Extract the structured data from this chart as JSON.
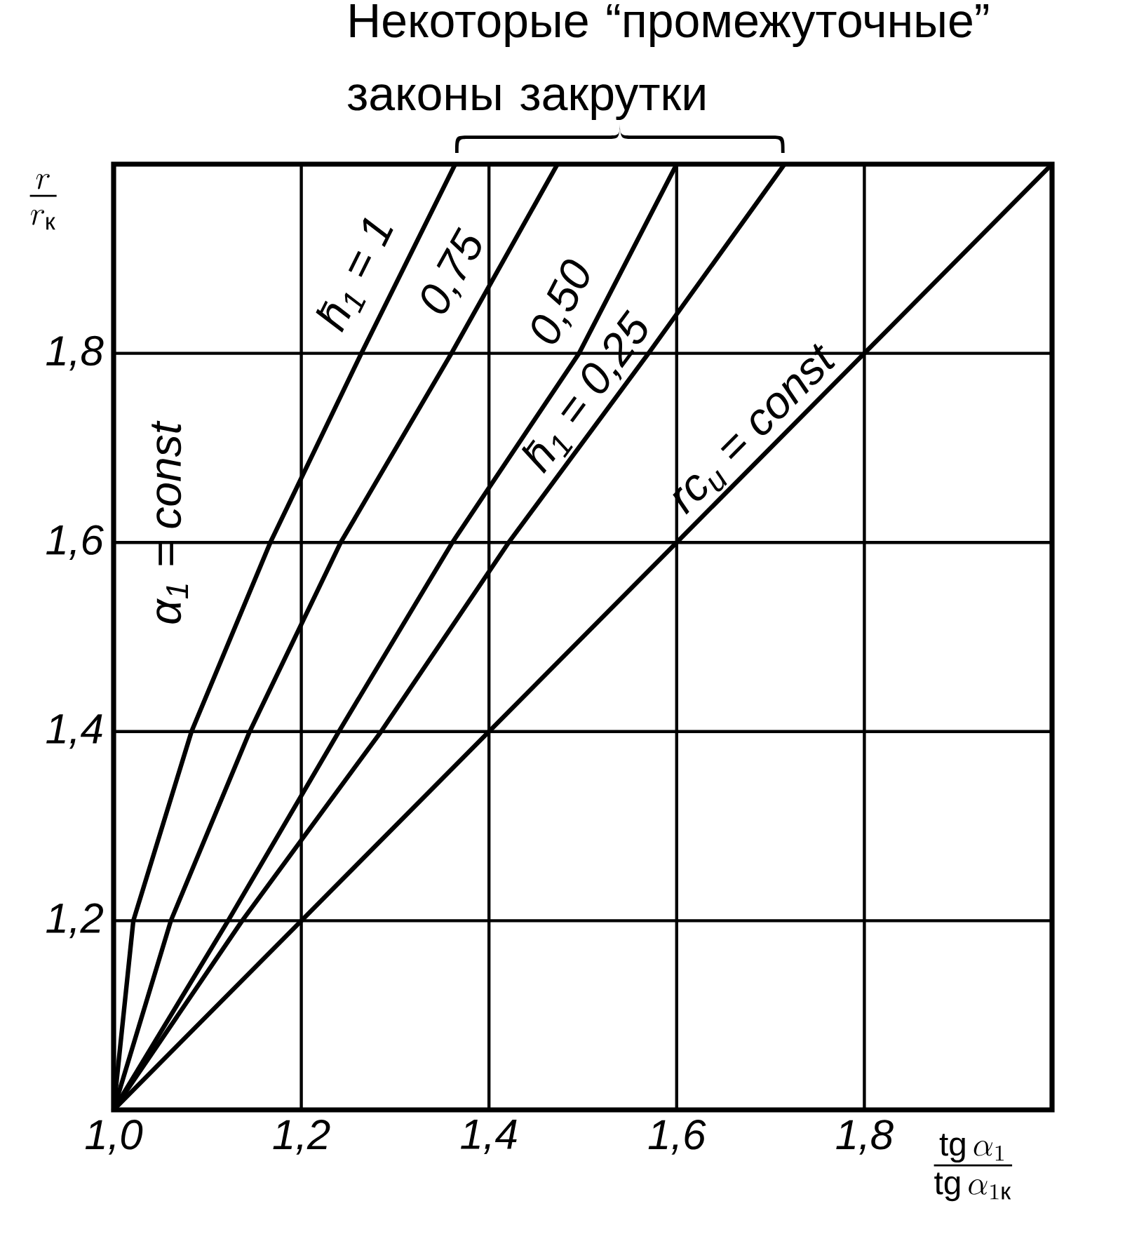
{
  "chart_data": {
    "type": "line",
    "title": "Некоторые “промежуточные” законы закрутки",
    "xlabel": "\\frac{\\mathrm{tg}\\,\\alpha_{1}}{\\mathrm{tg}\\,\\alpha_{1\\textrm{к}}}",
    "ylabel": "\\frac{r}{r_{\\textrm{к}}}",
    "xlim": [
      1.0,
      2.0
    ],
    "ylim": [
      1.0,
      2.0
    ],
    "xticks": [
      {
        "value": 1.0,
        "label": "1,0"
      },
      {
        "value": 1.2,
        "label": "1,2"
      },
      {
        "value": 1.4,
        "label": "1,4"
      },
      {
        "value": 1.6,
        "label": "1,6"
      },
      {
        "value": 1.8,
        "label": "1,8"
      },
      {
        "value": 2.0,
        "label": null
      }
    ],
    "yticks": [
      {
        "value": 1.2,
        "label": "1,2"
      },
      {
        "value": 1.4,
        "label": "1,4"
      },
      {
        "value": 1.6,
        "label": "1,6"
      },
      {
        "value": 1.8,
        "label": "1,8"
      }
    ],
    "grid": true,
    "marker": "none",
    "line_style": "solid",
    "annotations": [
      "α$_{1}$ = const"
    ],
    "series": [
      {
        "name": "h̄$_{1}$ = 1",
        "color": "#000000",
        "x": [
          1.0,
          1.021,
          1.083,
          1.167,
          1.264,
          1.364
        ],
        "values": [
          1.0,
          1.2,
          1.4,
          1.6,
          1.8,
          2.0
        ]
      },
      {
        "name": "0,75",
        "color": "#000000",
        "x": [
          1.0,
          1.061,
          1.145,
          1.242,
          1.36,
          1.473
        ],
        "values": [
          1.0,
          1.2,
          1.4,
          1.6,
          1.8,
          2.0
        ]
      },
      {
        "name": "0,50",
        "color": "#000000",
        "x": [
          1.0,
          1.122,
          1.24,
          1.361,
          1.496,
          1.6
        ],
        "values": [
          1.0,
          1.2,
          1.4,
          1.6,
          1.8,
          2.0
        ]
      },
      {
        "name": "h̄$_{1}$ = 0,25",
        "color": "#000000",
        "x": [
          1.0,
          1.137,
          1.285,
          1.421,
          1.57,
          1.715
        ],
        "values": [
          1.0,
          1.2,
          1.4,
          1.6,
          1.8,
          2.0
        ]
      },
      {
        "name": "rc$_{u}$ = const",
        "color": "#000000",
        "x": [
          1.0,
          1.2,
          1.4,
          1.6,
          1.8,
          2.0
        ],
        "values": [
          1.0,
          1.2,
          1.4,
          1.6,
          1.8,
          2.0
        ]
      }
    ]
  }
}
